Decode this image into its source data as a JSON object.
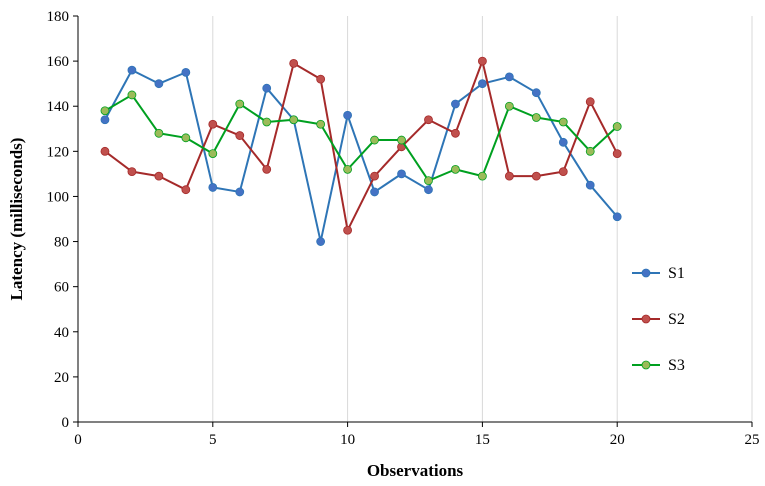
{
  "chart_data": {
    "type": "line",
    "title": "",
    "xlabel": "Observations",
    "ylabel": "Latency (milliseconds)",
    "xlim": [
      0,
      25
    ],
    "ylim": [
      0,
      180
    ],
    "xticks": [
      0,
      5,
      10,
      15,
      20,
      25
    ],
    "yticks": [
      0,
      20,
      40,
      60,
      80,
      100,
      120,
      140,
      160,
      180
    ],
    "grid": "vertical",
    "legend_position": "right",
    "x": [
      1,
      2,
      3,
      4,
      5,
      6,
      7,
      8,
      9,
      10,
      11,
      12,
      13,
      14,
      15,
      16,
      17,
      18,
      19,
      20
    ],
    "series": [
      {
        "name": "S1",
        "color": "#2e75b6",
        "marker_color": "#4472c4",
        "values": [
          134,
          156,
          150,
          155,
          104,
          102,
          148,
          134,
          80,
          136,
          102,
          110,
          103,
          141,
          150,
          153,
          146,
          124,
          105,
          91
        ]
      },
      {
        "name": "S2",
        "color": "#a52a2a",
        "marker_color": "#c0504d",
        "values": [
          120,
          111,
          109,
          103,
          132,
          127,
          112,
          159,
          152,
          85,
          109,
          122,
          134,
          128,
          160,
          109,
          109,
          111,
          142,
          119
        ]
      },
      {
        "name": "S3",
        "color": "#00a020",
        "marker_color": "#9bbb59",
        "values": [
          138,
          145,
          128,
          126,
          119,
          141,
          133,
          134,
          132,
          112,
          125,
          125,
          107,
          112,
          109,
          140,
          135,
          133,
          120,
          131
        ]
      }
    ]
  }
}
